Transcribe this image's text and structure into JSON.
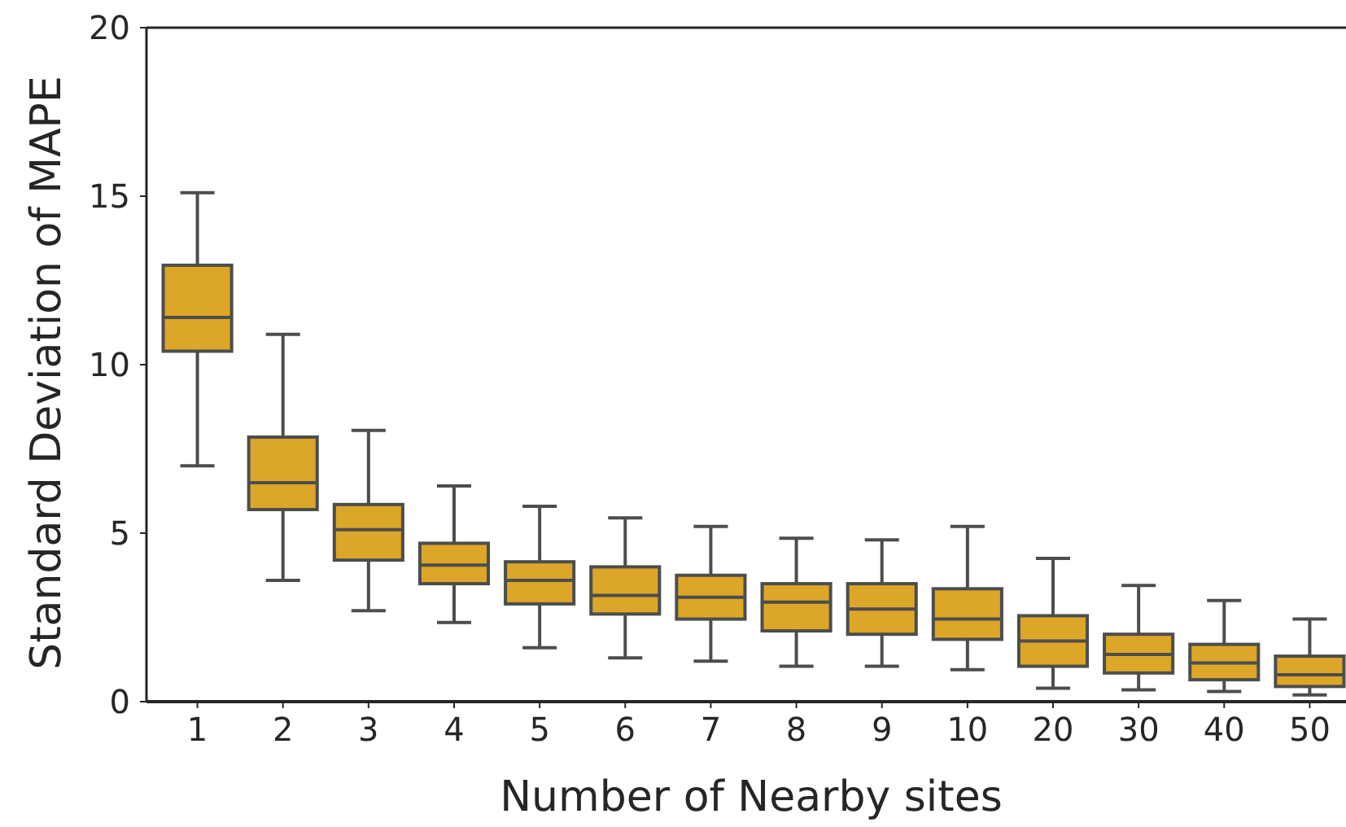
{
  "chart_data": {
    "type": "box",
    "xlabel": "Number of Nearby sites",
    "ylabel": "Standard Deviation of MAPE",
    "categories": [
      "1",
      "2",
      "3",
      "4",
      "5",
      "6",
      "7",
      "8",
      "9",
      "10",
      "20",
      "30",
      "40",
      "50"
    ],
    "boxes": [
      {
        "low": 7.0,
        "q1": 10.4,
        "median": 11.4,
        "q3": 12.95,
        "high": 15.1
      },
      {
        "low": 3.6,
        "q1": 5.7,
        "median": 6.5,
        "q3": 7.85,
        "high": 10.9
      },
      {
        "low": 2.7,
        "q1": 4.2,
        "median": 5.1,
        "q3": 5.85,
        "high": 8.05
      },
      {
        "low": 2.35,
        "q1": 3.5,
        "median": 4.05,
        "q3": 4.7,
        "high": 6.4
      },
      {
        "low": 1.6,
        "q1": 2.9,
        "median": 3.6,
        "q3": 4.15,
        "high": 5.8
      },
      {
        "low": 1.3,
        "q1": 2.6,
        "median": 3.15,
        "q3": 4.0,
        "high": 5.45
      },
      {
        "low": 1.2,
        "q1": 2.45,
        "median": 3.1,
        "q3": 3.75,
        "high": 5.2
      },
      {
        "low": 1.05,
        "q1": 2.1,
        "median": 2.95,
        "q3": 3.5,
        "high": 4.85
      },
      {
        "low": 1.05,
        "q1": 2.0,
        "median": 2.75,
        "q3": 3.5,
        "high": 4.8
      },
      {
        "low": 0.95,
        "q1": 1.85,
        "median": 2.45,
        "q3": 3.35,
        "high": 5.2
      },
      {
        "low": 0.4,
        "q1": 1.05,
        "median": 1.8,
        "q3": 2.55,
        "high": 4.25
      },
      {
        "low": 0.35,
        "q1": 0.85,
        "median": 1.4,
        "q3": 2.0,
        "high": 3.45
      },
      {
        "low": 0.3,
        "q1": 0.65,
        "median": 1.15,
        "q3": 1.7,
        "high": 3.0
      },
      {
        "low": 0.2,
        "q1": 0.45,
        "median": 0.8,
        "q3": 1.35,
        "high": 2.45
      }
    ],
    "color": "#dca628",
    "ylim": [
      0,
      20
    ],
    "yticks": [
      0,
      5,
      10,
      15,
      20
    ],
    "grid": false
  }
}
